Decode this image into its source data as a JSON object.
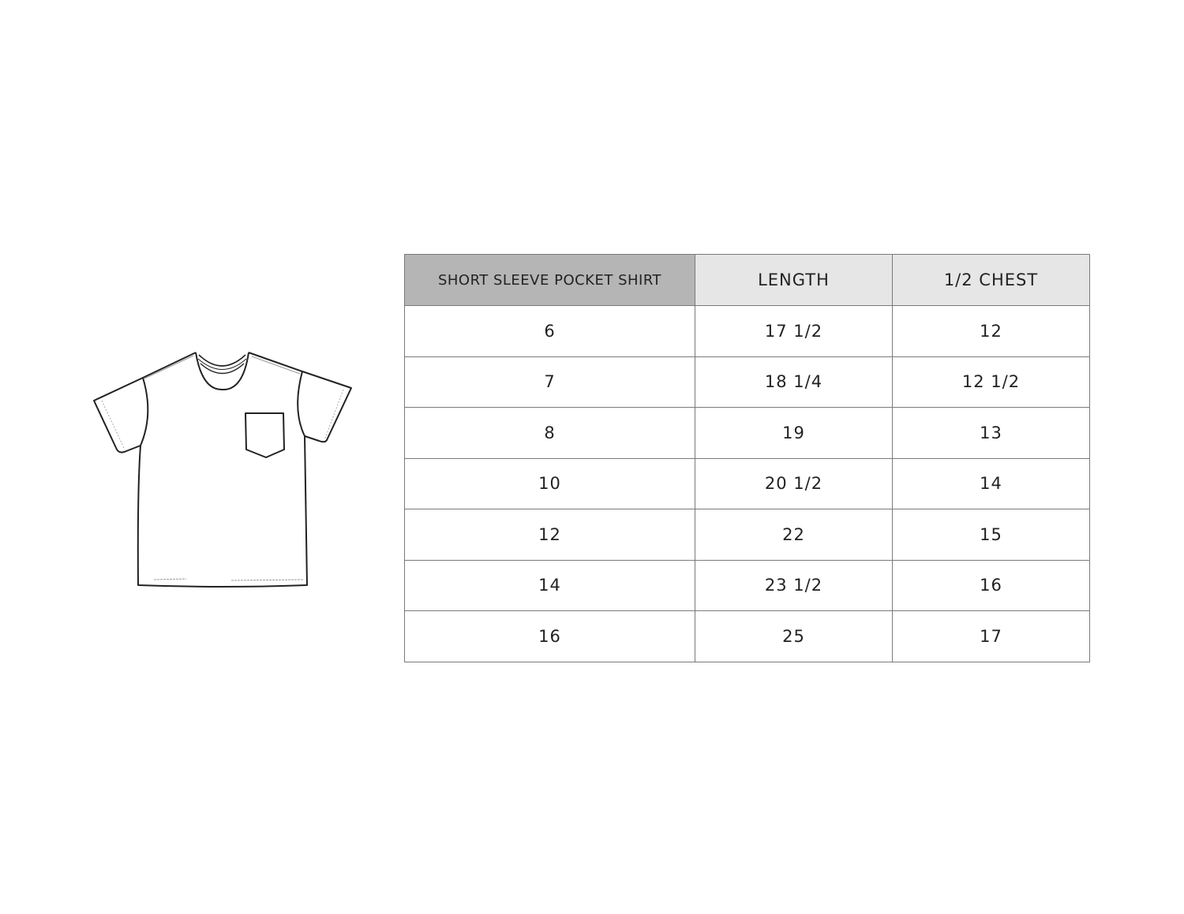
{
  "illustration": {
    "icon": "short-sleeve-pocket-tshirt-flat-sketch"
  },
  "table": {
    "headers": [
      "SHORT SLEEVE POCKET SHIRT",
      "LENGTH",
      "1/2 CHEST"
    ],
    "rows": [
      [
        "6",
        "17 1/2",
        "12"
      ],
      [
        "7",
        "18 1/4",
        "12 1/2"
      ],
      [
        "8",
        "19",
        "13"
      ],
      [
        "10",
        "20 1/2",
        "14"
      ],
      [
        "12",
        "22",
        "15"
      ],
      [
        "14",
        "23 1/2",
        "16"
      ],
      [
        "16",
        "25",
        "17"
      ]
    ],
    "colors": {
      "first_header_bg": "#b5b5b5",
      "header_bg": "#e6e6e6",
      "border": "#7a7a7a"
    }
  }
}
